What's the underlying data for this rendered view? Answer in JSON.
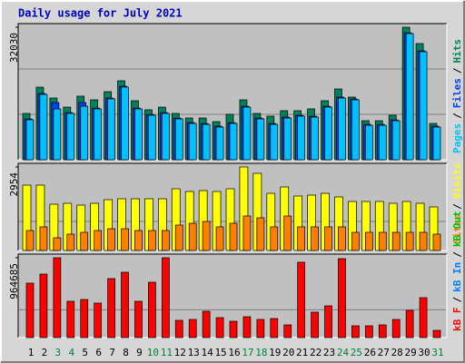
{
  "chart_data": [
    {
      "type": "bar",
      "title": "Daily usage for July 2021",
      "ylim": [
        0,
        32030
      ],
      "yticks": [
        32030
      ],
      "series": [
        {
          "name": "Pages",
          "color": "#00c0ff",
          "values": [
            9660,
            15800,
            12280,
            11190,
            12940,
            12280,
            14700,
            17550,
            12280,
            10750,
            11190,
            9870,
            8770,
            8550,
            7900,
            8770,
            12720,
            9870,
            8550,
            10090,
            10530,
            10310,
            12720,
            14920,
            14480,
            8330,
            8330,
            9430,
            30490,
            26110,
            7900
          ]
        },
        {
          "name": "Files",
          "color": "#0040ff",
          "values": [
            9860,
            16000,
            13820,
            11390,
            13820,
            12480,
            14900,
            17750,
            12480,
            10950,
            11390,
            10070,
            8970,
            8750,
            8100,
            8970,
            12920,
            10070,
            8750,
            10290,
            10730,
            10510,
            12920,
            15120,
            14680,
            8530,
            8530,
            9630,
            30690,
            26310,
            8100
          ]
        },
        {
          "name": "Hits",
          "color": "#00805c",
          "values": [
            11190,
            17550,
            14920,
            12720,
            15360,
            14480,
            16450,
            19090,
            14260,
            12070,
            12720,
            11190,
            10090,
            10090,
            9210,
            10970,
            14480,
            11190,
            10530,
            11850,
            11850,
            12290,
            14260,
            17110,
            15140,
            9430,
            9430,
            10750,
            32030,
            28080,
            8770
          ]
        }
      ]
    },
    {
      "type": "bar",
      "ylim": [
        0,
        2954
      ],
      "yticks": [
        2954
      ],
      "series": [
        {
          "name": "Sites",
          "color": "#ff8000",
          "values": [
            706,
            835,
            449,
            578,
            642,
            706,
            770,
            770,
            706,
            706,
            706,
            899,
            963,
            1027,
            835,
            963,
            1220,
            1156,
            835,
            1220,
            835,
            835,
            835,
            835,
            642,
            642,
            642,
            642,
            642,
            642,
            578
          ]
        },
        {
          "name": "Visits",
          "color": "#ffff00",
          "values": [
            2312,
            2312,
            1637,
            1669,
            1605,
            1669,
            1798,
            1830,
            1830,
            1830,
            1830,
            2183,
            2087,
            2119,
            2087,
            2183,
            2954,
            2729,
            2022,
            2247,
            1926,
            1958,
            2022,
            1894,
            1734,
            1734,
            1734,
            1669,
            1734,
            1669,
            1541
          ]
        }
      ]
    },
    {
      "type": "bar",
      "ylim": [
        0,
        964685
      ],
      "yticks": [
        964685
      ],
      "categories": [
        "1",
        "2",
        "3",
        "4",
        "5",
        "6",
        "7",
        "8",
        "9",
        "10",
        "11",
        "12",
        "13",
        "14",
        "15",
        "16",
        "17",
        "18",
        "19",
        "20",
        "21",
        "22",
        "23",
        "24",
        "25",
        "26",
        "27",
        "28",
        "29",
        "30",
        "31"
      ],
      "category_colors": [
        "#000000",
        "#000000",
        "#008040",
        "#008040",
        "#000000",
        "#000000",
        "#000000",
        "#000000",
        "#000000",
        "#008040",
        "#008040",
        "#000000",
        "#000000",
        "#000000",
        "#000000",
        "#000000",
        "#008040",
        "#008040",
        "#000000",
        "#000000",
        "#000000",
        "#000000",
        "#000000",
        "#008040",
        "#008040",
        "#000000",
        "#000000",
        "#000000",
        "#000000",
        "#000000",
        "#008040"
      ],
      "series": [
        {
          "name": "kB F",
          "color": "#ff0000",
          "values": [
            657720,
            767340,
            964685,
            438480,
            460400,
            416560,
            712530,
            789260,
            438480,
            668680,
            964685,
            208280,
            219240,
            317900,
            241160,
            197320,
            252130,
            219240,
            230200,
            153470,
            909850,
            306940,
            383670,
            953690,
            142510,
            142510,
            153470,
            219240,
            328860,
            482330,
            87700
          ]
        }
      ],
      "legend_only": [
        {
          "name": "kB In",
          "color": "#0080ff"
        },
        {
          "name": "kB Out",
          "color": "#00c000"
        }
      ]
    }
  ],
  "legend_separator": "/"
}
